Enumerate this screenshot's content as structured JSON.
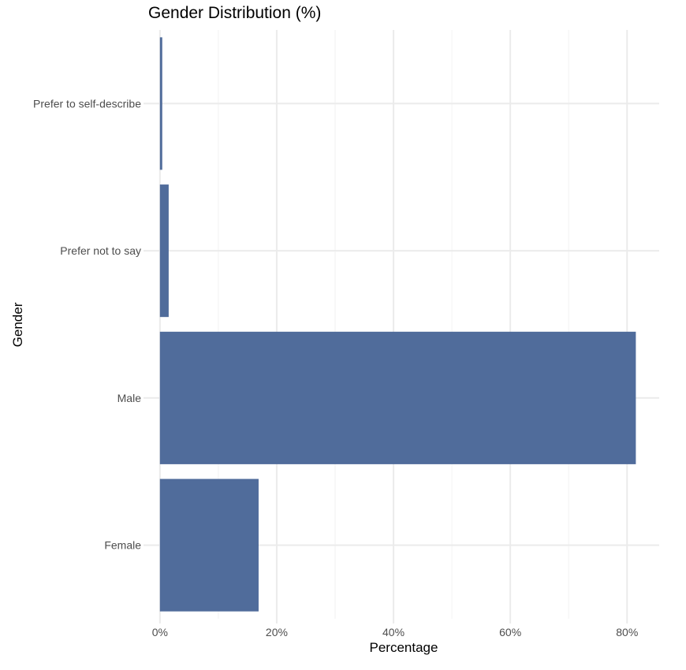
{
  "chart_data": {
    "type": "bar",
    "orientation": "horizontal",
    "title": "Gender Distribution (%)",
    "xlabel": "Percentage",
    "ylabel": "Gender",
    "categories": [
      "Female",
      "Male",
      "Prefer not to say",
      "Prefer to self-describe"
    ],
    "values": [
      16.9,
      81.5,
      1.5,
      0.4
    ],
    "xlim": [
      -2,
      85.5
    ],
    "x_ticks": [
      0,
      20,
      40,
      60,
      80
    ],
    "x_tick_labels": [
      "0%",
      "20%",
      "40%",
      "60%",
      "80%"
    ],
    "grid": true,
    "bar_color": "#506c9b"
  }
}
